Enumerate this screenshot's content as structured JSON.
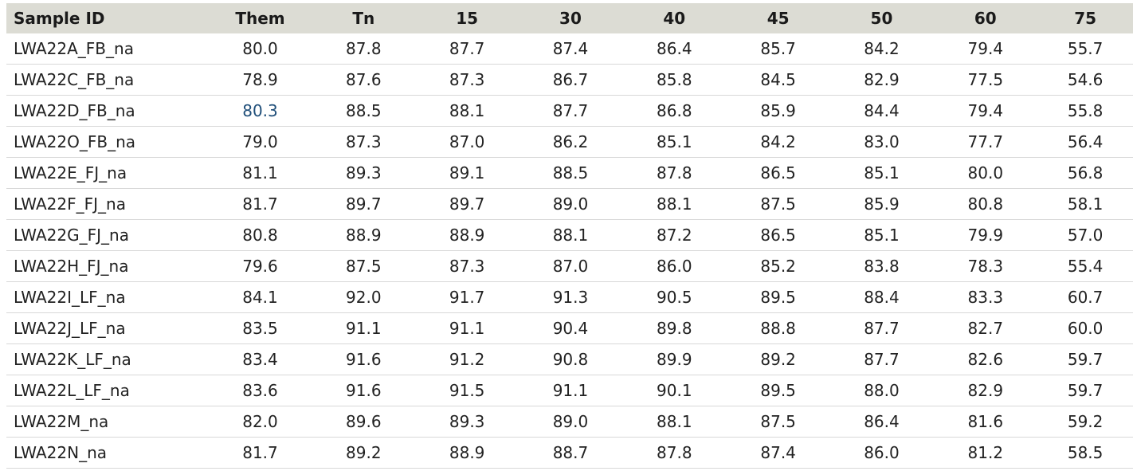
{
  "table": {
    "columns": [
      "Sample ID",
      "Them",
      "Tn",
      "15",
      "30",
      "40",
      "45",
      "50",
      "60",
      "75"
    ],
    "rows": [
      [
        "LWA22A_FB_na",
        "80.0",
        "87.8",
        "87.7",
        "87.4",
        "86.4",
        "85.7",
        "84.2",
        "79.4",
        "55.7"
      ],
      [
        "LWA22C_FB_na",
        "78.9",
        "87.6",
        "87.3",
        "86.7",
        "85.8",
        "84.5",
        "82.9",
        "77.5",
        "54.6"
      ],
      [
        "LWA22D_FB_na",
        "80.3",
        "88.5",
        "88.1",
        "87.7",
        "86.8",
        "85.9",
        "84.4",
        "79.4",
        "55.8"
      ],
      [
        "LWA22O_FB_na",
        "79.0",
        "87.3",
        "87.0",
        "86.2",
        "85.1",
        "84.2",
        "83.0",
        "77.7",
        "56.4"
      ],
      [
        "LWA22E_FJ_na",
        "81.1",
        "89.3",
        "89.1",
        "88.5",
        "87.8",
        "86.5",
        "85.1",
        "80.0",
        "56.8"
      ],
      [
        "LWA22F_FJ_na",
        "81.7",
        "89.7",
        "89.7",
        "89.0",
        "88.1",
        "87.5",
        "85.9",
        "80.8",
        "58.1"
      ],
      [
        "LWA22G_FJ_na",
        "80.8",
        "88.9",
        "88.9",
        "88.1",
        "87.2",
        "86.5",
        "85.1",
        "79.9",
        "57.0"
      ],
      [
        "LWA22H_FJ_na",
        "79.6",
        "87.5",
        "87.3",
        "87.0",
        "86.0",
        "85.2",
        "83.8",
        "78.3",
        "55.4"
      ],
      [
        "LWA22I_LF_na",
        "84.1",
        "92.0",
        "91.7",
        "91.3",
        "90.5",
        "89.5",
        "88.4",
        "83.3",
        "60.7"
      ],
      [
        "LWA22J_LF_na",
        "83.5",
        "91.1",
        "91.1",
        "90.4",
        "89.8",
        "88.8",
        "87.7",
        "82.7",
        "60.0"
      ],
      [
        "LWA22K_LF_na",
        "83.4",
        "91.6",
        "91.2",
        "90.8",
        "89.9",
        "89.2",
        "87.7",
        "82.6",
        "59.7"
      ],
      [
        "LWA22L_LF_na",
        "83.6",
        "91.6",
        "91.5",
        "91.1",
        "90.1",
        "89.5",
        "88.0",
        "82.9",
        "59.7"
      ],
      [
        "LWA22M_na",
        "82.0",
        "89.6",
        "89.3",
        "89.0",
        "88.1",
        "87.5",
        "86.4",
        "81.6",
        "59.2"
      ],
      [
        "LWA22N_na",
        "81.7",
        "89.2",
        "88.9",
        "88.7",
        "87.8",
        "87.4",
        "86.0",
        "81.2",
        "58.5"
      ]
    ],
    "highlighted_cell": {
      "row": 2,
      "col": 1
    },
    "colors": {
      "header_bg": "#dcdcd4",
      "text": "#222222",
      "link_text": "#1f4e79",
      "row_border": "#d8d8d8"
    }
  }
}
